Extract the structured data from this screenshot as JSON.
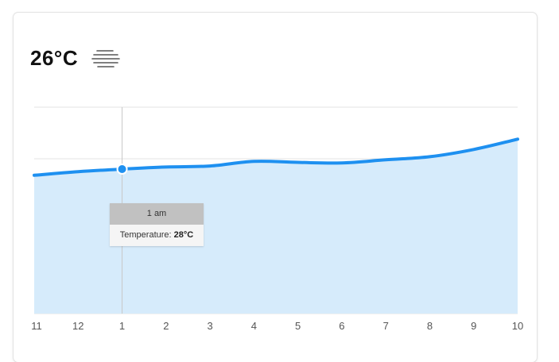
{
  "current": {
    "temperature": "26°C",
    "condition_icon": "fog-icon"
  },
  "tooltip": {
    "time": "1 am",
    "label": "Temperature:",
    "value": "28°C"
  },
  "colors": {
    "line": "#1e90f0",
    "area": "#d6ebfb",
    "grid": "#e3e3e3"
  },
  "chart_data": {
    "type": "area",
    "categories": [
      "11",
      "12",
      "1",
      "2",
      "3",
      "4",
      "5",
      "6",
      "7",
      "8",
      "9",
      "10"
    ],
    "values": [
      26.8,
      27.5,
      28,
      28.4,
      28.6,
      29.5,
      29.3,
      29.2,
      29.8,
      30.4,
      31.8,
      33.8
    ],
    "ylim": [
      0,
      40
    ],
    "grid": true,
    "highlighted_index": 2
  }
}
